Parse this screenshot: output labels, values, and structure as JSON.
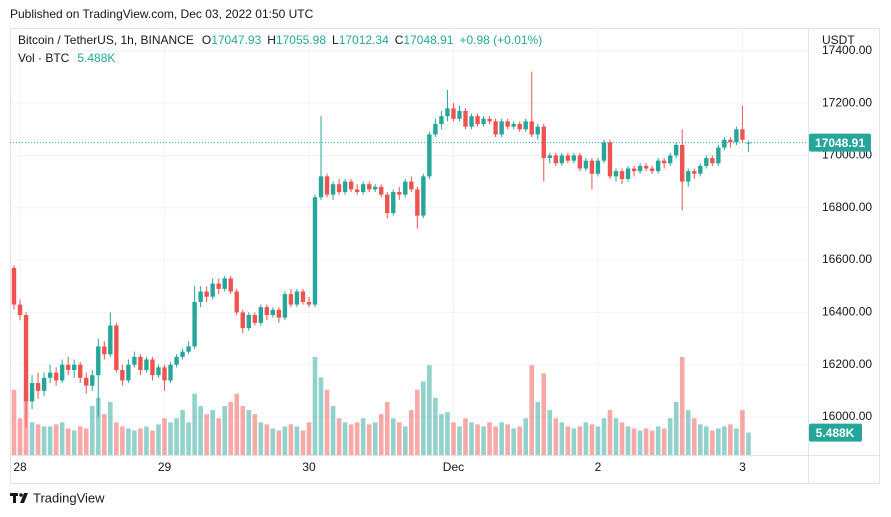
{
  "published": "Published on TradingView.com, Dec 03, 2022 01:50 UTC",
  "footer": "TradingView",
  "chart_data": {
    "type": "candlestick",
    "symbol": "Bitcoin / TetherUS, 1h, BINANCE",
    "ohlc_letters": [
      "O",
      "H",
      "L",
      "C"
    ],
    "change": "+0.98 (+0.01%)",
    "volume_title": "Vol · BTC",
    "volume_label": "5.488K",
    "axis_unit": "USDT",
    "up_color": "#26a69a",
    "down_color": "#ef5350",
    "categories": [
      null,
      "28",
      null,
      null,
      null,
      null,
      null,
      null,
      null,
      null,
      null,
      null,
      null,
      null,
      null,
      null,
      null,
      null,
      null,
      null,
      null,
      null,
      null,
      null,
      null,
      "29",
      null,
      null,
      null,
      null,
      null,
      null,
      null,
      null,
      null,
      null,
      null,
      null,
      null,
      null,
      null,
      null,
      null,
      null,
      null,
      null,
      null,
      null,
      null,
      "30",
      null,
      null,
      null,
      null,
      null,
      null,
      null,
      null,
      null,
      null,
      null,
      null,
      null,
      null,
      null,
      null,
      null,
      null,
      null,
      null,
      null,
      null,
      null,
      "Dec",
      null,
      null,
      null,
      null,
      null,
      null,
      null,
      null,
      null,
      null,
      null,
      null,
      null,
      null,
      null,
      null,
      null,
      null,
      null,
      null,
      null,
      null,
      null,
      "2",
      null,
      null,
      null,
      null,
      null,
      null,
      null,
      null,
      null,
      null,
      null,
      null,
      null,
      null,
      null,
      null,
      null,
      null,
      null,
      null,
      null,
      null,
      null,
      "3",
      null
    ],
    "open": [
      16570,
      16430,
      16390,
      16060,
      16130,
      16100,
      16150,
      16170,
      16140,
      16200,
      16180,
      16200,
      16150,
      16120,
      16160,
      16270,
      16240,
      16350,
      16180,
      16140,
      16200,
      16230,
      16180,
      16220,
      16160,
      16190,
      16140,
      16200,
      16230,
      16250,
      16270,
      16440,
      16480,
      16460,
      16510,
      16490,
      16530,
      16480,
      16400,
      16340,
      16390,
      16360,
      16420,
      16390,
      16410,
      16380,
      16470,
      16430,
      16480,
      16440,
      16430,
      16840,
      16920,
      16850,
      16890,
      16860,
      16900,
      16870,
      16860,
      16890,
      16870,
      16880,
      16850,
      16780,
      16860,
      16850,
      16900,
      16870,
      16770,
      16920,
      17080,
      17120,
      17150,
      17180,
      17140,
      17170,
      17110,
      17150,
      17120,
      17140,
      17130,
      17080,
      17130,
      17110,
      17120,
      17100,
      17130,
      17080,
      17110,
      16990,
      17000,
      16970,
      17000,
      16980,
      17000,
      16950,
      16980,
      16930,
      16980,
      17050,
      16920,
      16940,
      16910,
      16950,
      16940,
      16960,
      16950,
      16940,
      16980,
      16970,
      17000,
      17040,
      16900,
      16940,
      16930,
      16960,
      16990,
      16970,
      17030,
      17060,
      17050,
      17100,
      17047.93
    ],
    "high": [
      16580,
      16450,
      16400,
      16160,
      16170,
      16170,
      16200,
      16190,
      16220,
      16230,
      16220,
      16210,
      16170,
      16180,
      16300,
      16290,
      16400,
      16360,
      16200,
      16220,
      16250,
      16240,
      16230,
      16230,
      16200,
      16200,
      16210,
      16240,
      16260,
      16290,
      16500,
      16500,
      16500,
      16530,
      16530,
      16540,
      16540,
      16490,
      16410,
      16400,
      16400,
      16430,
      16430,
      16420,
      16420,
      16480,
      16490,
      16490,
      16490,
      16460,
      16850,
      17150,
      16930,
      16900,
      16910,
      16910,
      16910,
      16890,
      16900,
      16900,
      16890,
      16890,
      16860,
      16870,
      16880,
      16910,
      16920,
      16880,
      16930,
      17090,
      17140,
      17170,
      17250,
      17200,
      17190,
      17180,
      17160,
      17160,
      17150,
      17150,
      17140,
      17140,
      17140,
      17130,
      17130,
      17140,
      17320,
      17120,
      17120,
      17010,
      17010,
      17010,
      17010,
      17010,
      17010,
      16990,
      16990,
      16990,
      17060,
      17060,
      16950,
      16950,
      16960,
      16960,
      16970,
      16970,
      16960,
      16990,
      16990,
      17010,
      17050,
      17100,
      16950,
      16950,
      16970,
      17000,
      17000,
      17040,
      17070,
      17070,
      17110,
      17190,
      17055.98
    ],
    "low": [
      16410,
      16370,
      15960,
      16030,
      16070,
      16080,
      16130,
      16120,
      16130,
      16160,
      16150,
      16130,
      16090,
      16100,
      16000,
      16220,
      16230,
      16170,
      16120,
      16130,
      16190,
      16160,
      16170,
      16140,
      16150,
      16100,
      16130,
      16190,
      16220,
      16240,
      16260,
      16420,
      16440,
      16450,
      16470,
      16480,
      16470,
      16390,
      16320,
      16330,
      16350,
      16350,
      16370,
      16380,
      16360,
      16370,
      16420,
      16420,
      16430,
      16420,
      16420,
      16830,
      16840,
      16830,
      16850,
      16850,
      16860,
      16850,
      16850,
      16860,
      16860,
      16840,
      16760,
      16770,
      16830,
      16840,
      16860,
      16720,
      16760,
      16910,
      17070,
      17100,
      17130,
      17130,
      17130,
      17100,
      17100,
      17110,
      17110,
      17120,
      17070,
      17070,
      17100,
      17100,
      17090,
      17090,
      17070,
      17060,
      16900,
      16970,
      16960,
      16960,
      16970,
      16970,
      16940,
      16940,
      16870,
      16920,
      16970,
      16910,
      16900,
      16890,
      16900,
      16920,
      16930,
      16940,
      16930,
      16930,
      16950,
      16960,
      16990,
      16790,
      16880,
      16910,
      16920,
      16950,
      16960,
      16960,
      17020,
      17030,
      17040,
      17050,
      17012.34
    ],
    "close": [
      16430,
      16390,
      16060,
      16130,
      16100,
      16150,
      16170,
      16140,
      16200,
      16180,
      16200,
      16150,
      16120,
      16160,
      16270,
      16240,
      16350,
      16180,
      16140,
      16200,
      16230,
      16180,
      16220,
      16160,
      16190,
      16140,
      16200,
      16230,
      16250,
      16270,
      16440,
      16480,
      16460,
      16510,
      16490,
      16530,
      16480,
      16400,
      16340,
      16390,
      16360,
      16420,
      16390,
      16410,
      16380,
      16470,
      16430,
      16480,
      16440,
      16430,
      16840,
      16920,
      16850,
      16890,
      16860,
      16900,
      16870,
      16860,
      16890,
      16870,
      16880,
      16850,
      16780,
      16860,
      16850,
      16900,
      16870,
      16770,
      16920,
      17080,
      17120,
      17150,
      17180,
      17140,
      17170,
      17110,
      17150,
      17120,
      17140,
      17130,
      17080,
      17130,
      17110,
      17120,
      17100,
      17130,
      17080,
      17110,
      16990,
      17000,
      16970,
      17000,
      16980,
      17000,
      16950,
      16980,
      16930,
      16980,
      17050,
      16920,
      16940,
      16910,
      16950,
      16940,
      16960,
      16950,
      16940,
      16980,
      16970,
      17000,
      17040,
      16900,
      16940,
      16930,
      16960,
      16990,
      16970,
      17030,
      17060,
      17050,
      17100,
      17060,
      17048.91
    ],
    "volume": [
      16000,
      9000,
      15000,
      8000,
      7500,
      7000,
      7000,
      7500,
      8000,
      6500,
      6000,
      7000,
      6500,
      12000,
      14000,
      10000,
      13000,
      8000,
      7000,
      6500,
      6000,
      6500,
      7000,
      6000,
      7500,
      9000,
      8000,
      9000,
      11000,
      8000,
      15000,
      12000,
      10000,
      11000,
      9000,
      12000,
      13000,
      15000,
      12000,
      11000,
      10000,
      8000,
      7500,
      6500,
      6000,
      7000,
      7500,
      7000,
      6000,
      8000,
      24000,
      19000,
      16000,
      12000,
      9000,
      8000,
      7500,
      8000,
      9000,
      7500,
      8000,
      10000,
      13000,
      9000,
      8000,
      7000,
      11000,
      16000,
      18000,
      22000,
      14000,
      10000,
      10500,
      8000,
      7000,
      9000,
      8000,
      7500,
      7000,
      8000,
      7000,
      8000,
      7500,
      6500,
      7000,
      9000,
      22000,
      13000,
      20000,
      11000,
      9000,
      8000,
      7000,
      6500,
      7000,
      8000,
      7500,
      7000,
      9000,
      11000,
      9000,
      8000,
      7000,
      6500,
      6000,
      6500,
      6000,
      7000,
      6500,
      9000,
      13000,
      24000,
      11000,
      9000,
      7500,
      7000,
      6000,
      6500,
      7000,
      7500,
      6500,
      11000,
      5488
    ],
    "ylim": [
      15855,
      17487
    ],
    "yticks": [
      {
        "value": 16000,
        "label": "16000.00"
      },
      {
        "value": 16200,
        "label": "16200.00"
      },
      {
        "value": 16400,
        "label": "16400.00"
      },
      {
        "value": 16600,
        "label": "16600.00"
      },
      {
        "value": 16800,
        "label": "16800.00"
      },
      {
        "value": 17000,
        "label": "17000.00"
      },
      {
        "value": 17200,
        "label": "17200.00"
      },
      {
        "value": 17400,
        "label": "17400.00"
      }
    ],
    "grid": true
  }
}
